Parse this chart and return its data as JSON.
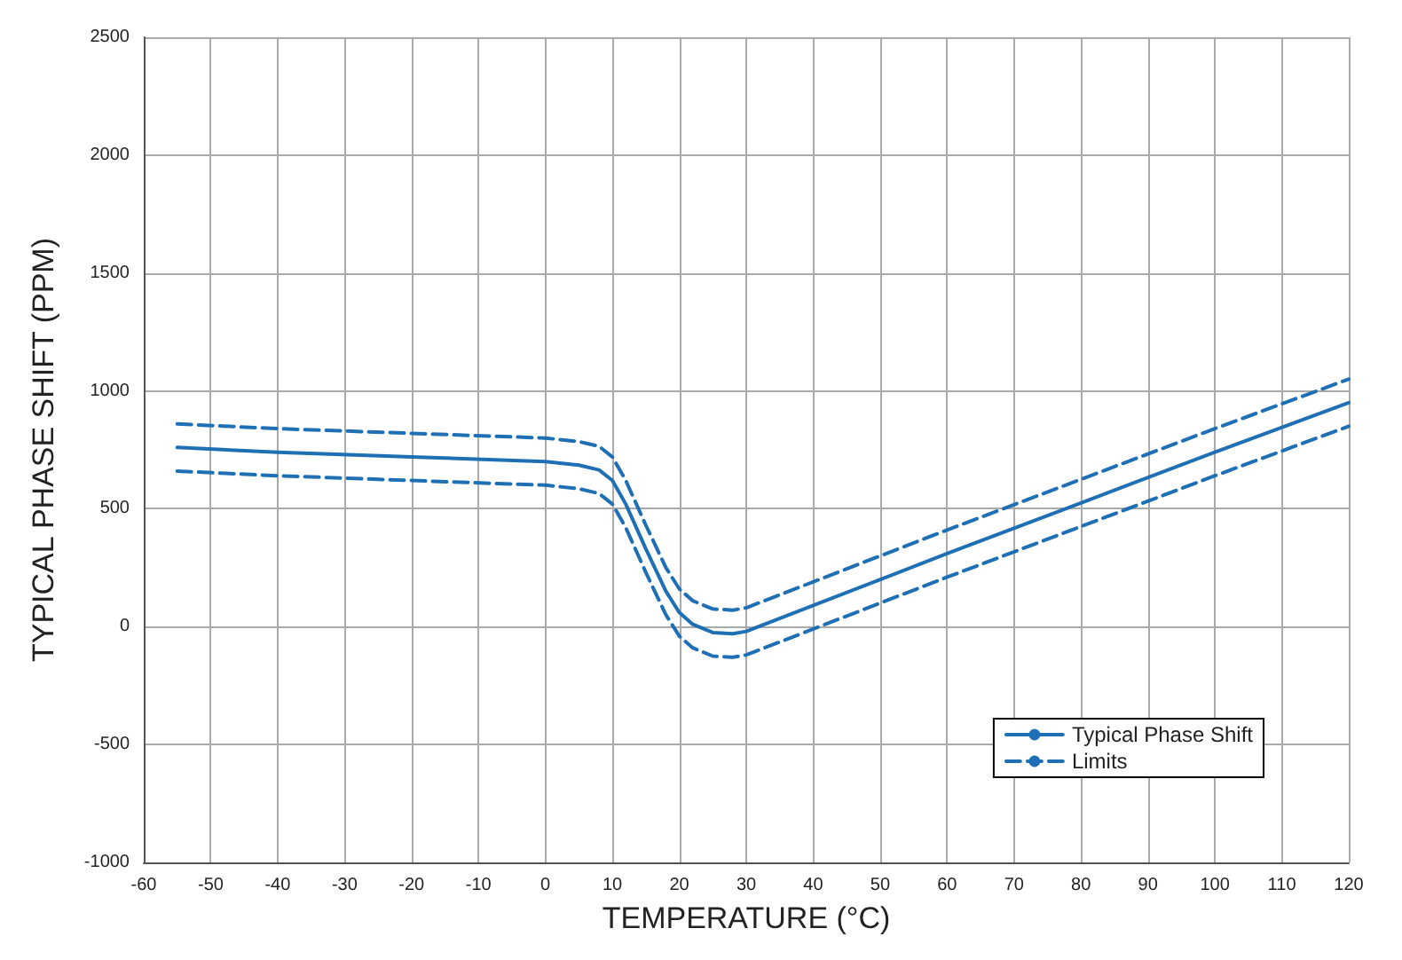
{
  "chart_data": {
    "type": "line",
    "xlabel": "TEMPERATURE (°C)",
    "ylabel": "TYPICAL PHASE SHIFT (PPM)",
    "xlim": [
      -60,
      120
    ],
    "xticks": [
      -60,
      -50,
      -40,
      -30,
      -20,
      -10,
      0,
      10,
      20,
      30,
      40,
      50,
      60,
      70,
      80,
      90,
      100,
      110,
      120
    ],
    "ylim": [
      -1000,
      2500
    ],
    "yticks": [
      -1000,
      -500,
      0,
      500,
      1000,
      1500,
      2000,
      2500
    ],
    "grid": true,
    "legend": "bottom right",
    "marker": "none",
    "series": [
      {
        "name": "Typical Phase Shift",
        "color": "#1f6fb5",
        "line_style": "solid",
        "x": [
          -55,
          -40,
          -20,
          0,
          5,
          8,
          10,
          12,
          15,
          18,
          20,
          22,
          25,
          28,
          30,
          40,
          60,
          80,
          100,
          120
        ],
        "values": [
          760,
          740,
          720,
          700,
          685,
          665,
          620,
          520,
          330,
          150,
          60,
          10,
          -25,
          -30,
          -20,
          90,
          310,
          525,
          740,
          950
        ]
      },
      {
        "name": "Limits",
        "color": "#1f6fb5",
        "line_style": "dashed",
        "x": [
          -55,
          -40,
          -20,
          0,
          5,
          8,
          10,
          12,
          15,
          18,
          20,
          22,
          25,
          28,
          30,
          40,
          60,
          80,
          100,
          120
        ],
        "values": [
          860,
          840,
          820,
          800,
          785,
          765,
          720,
          620,
          430,
          250,
          160,
          110,
          75,
          70,
          80,
          190,
          410,
          625,
          840,
          1050
        ]
      },
      {
        "color": "#1f6fb5",
        "line_style": "dashed",
        "x": [
          -55,
          -40,
          -20,
          0,
          5,
          8,
          10,
          12,
          15,
          18,
          20,
          22,
          25,
          28,
          30,
          40,
          60,
          80,
          100,
          120
        ],
        "values": [
          660,
          640,
          620,
          600,
          585,
          565,
          520,
          420,
          230,
          50,
          -40,
          -90,
          -125,
          -130,
          -120,
          -10,
          210,
          425,
          640,
          850
        ]
      }
    ]
  }
}
